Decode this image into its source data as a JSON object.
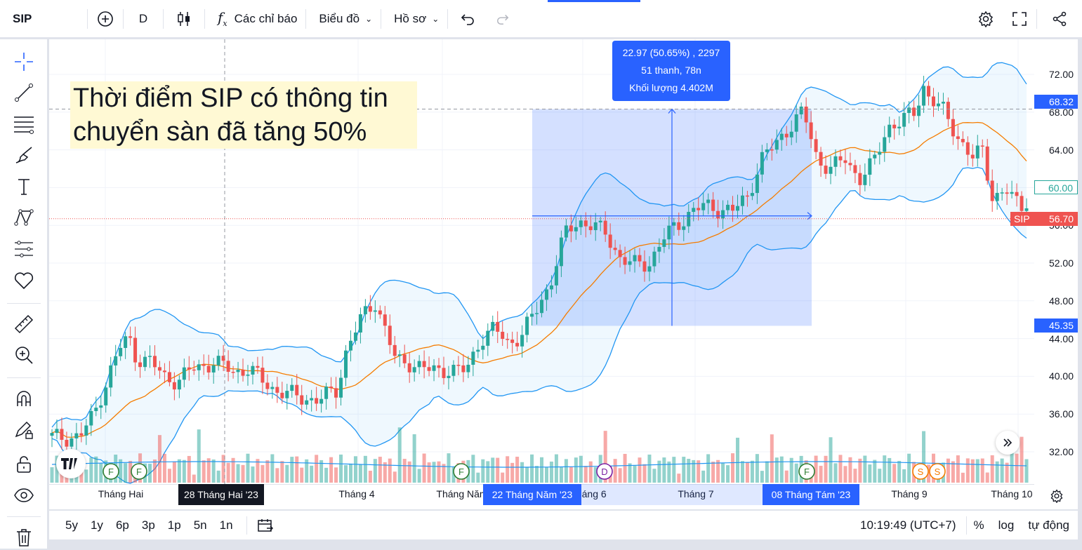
{
  "toolbar": {
    "symbol": "SIP",
    "interval": "D",
    "indicators_label": "Các chỉ báo",
    "chart_type_label": "Biểu đồ",
    "profile_label": "Hồ sơ"
  },
  "annotation": {
    "line1": "Thời điểm SIP có thông tin",
    "line2": "chuyển sàn đã tăng 50%"
  },
  "measure": {
    "line1": "22.97 (50.65%) , 2297",
    "line2": "51 thanh, 78n",
    "line3": "Khối lượng 4.402M"
  },
  "price_axis": {
    "ticks": [
      "72.00",
      "68.00",
      "64.00",
      "60.00",
      "56.00",
      "52.00",
      "48.00",
      "44.00",
      "40.00",
      "36.00",
      "32.00"
    ],
    "marker_top": "68.32",
    "marker_bottom": "45.35",
    "marker_right": "60.00",
    "last_symbol": "SIP",
    "last_price": "56.70"
  },
  "time_axis": {
    "labels": [
      "Tháng Hai",
      "Tháng 4",
      "Tháng Năm",
      "Tháng 6",
      "Tháng 7",
      "Tháng 9",
      "Tháng 10"
    ],
    "crosshair_date": "28 Tháng Hai '23",
    "range_start": "22 Tháng Năm '23",
    "range_end": "08 Tháng Tám '23"
  },
  "events": {
    "f": "F",
    "d": "D",
    "s": "S"
  },
  "bottom": {
    "timeframes": [
      "5y",
      "1y",
      "6p",
      "3p",
      "1p",
      "5n",
      "1n"
    ],
    "clock": "10:19:49 (UTC+7)",
    "percent": "%",
    "log": "log",
    "auto": "tự động"
  },
  "colors": {
    "up": "#26a69a",
    "down": "#ef5350",
    "band": "#2196f3",
    "ma": "#f57c00",
    "accent": "#2962ff"
  },
  "chart_data": {
    "type": "candlestick",
    "ylim": [
      29,
      74
    ],
    "series": [
      {
        "name": "SIP",
        "last": 56.7
      },
      {
        "name": "measure_range",
        "from": 45.35,
        "to": 68.32,
        "change": 22.97,
        "change_pct": 50.65
      }
    ]
  }
}
